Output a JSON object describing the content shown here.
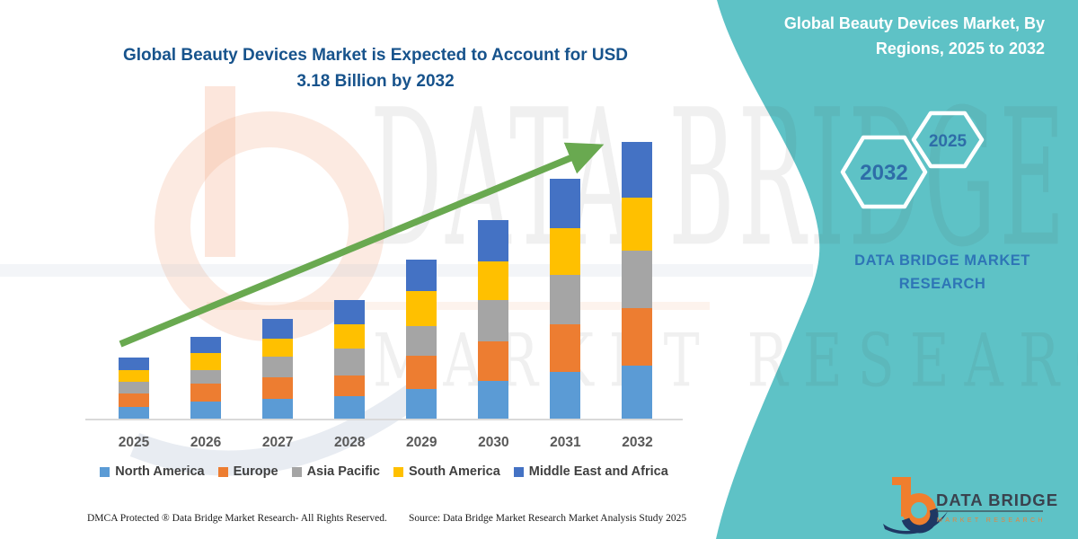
{
  "chart": {
    "title_line1": "Global Beauty Devices Market is Expected to Account for USD",
    "title_line2": "3.18 Billion by 2032"
  },
  "chart_data": {
    "type": "bar",
    "subtype": "stacked-column",
    "title": "Global Beauty Devices Market is Expected to Account for USD 3.18 Billion by 2032",
    "unit": "USD billion (estimated from bar heights; 2032 total anchored at 3.18)",
    "categories": [
      "2025",
      "2026",
      "2027",
      "2028",
      "2029",
      "2030",
      "2031",
      "2032"
    ],
    "series": [
      {
        "name": "North America",
        "color": "#5B9BD5",
        "values": [
          0.13,
          0.19,
          0.23,
          0.26,
          0.34,
          0.43,
          0.53,
          0.61
        ]
      },
      {
        "name": "Europe",
        "color": "#ED7D31",
        "values": [
          0.15,
          0.2,
          0.25,
          0.24,
          0.38,
          0.45,
          0.54,
          0.66
        ]
      },
      {
        "name": "Asia Pacific",
        "color": "#A5A5A5",
        "values": [
          0.13,
          0.15,
          0.24,
          0.31,
          0.34,
          0.47,
          0.56,
          0.66
        ]
      },
      {
        "name": "South America",
        "color": "#FFC000",
        "values": [
          0.13,
          0.19,
          0.2,
          0.28,
          0.4,
          0.44,
          0.53,
          0.61
        ]
      },
      {
        "name": "Middle East and Africa",
        "color": "#4472C4",
        "values": [
          0.14,
          0.18,
          0.23,
          0.28,
          0.36,
          0.47,
          0.56,
          0.64
        ]
      }
    ],
    "totals": [
      0.68,
      0.91,
      1.15,
      1.37,
      1.82,
      2.26,
      2.72,
      3.18
    ],
    "xlabel": "",
    "ylabel": "",
    "ylim": [
      0,
      3.35
    ],
    "grid": false,
    "y_axis_shown": false,
    "legend_position": "bottom",
    "annotations": [
      "upward green trend arrow across bar tops"
    ]
  },
  "side_panel": {
    "title_line1": "Global Beauty Devices Market, By",
    "title_line2": "Regions, 2025 to 2032",
    "hex_large_label": "2032",
    "hex_small_label": "2025",
    "brand_text": "DATA BRIDGE MARKET RESEARCH",
    "panel_color": "#5EC2C6"
  },
  "watermark": {
    "line1": "DATA BRIDGE",
    "line2": "MARKET RESEARCH"
  },
  "logo": {
    "name": "DATA BRIDGE",
    "tagline": "MARKET RESEARCH"
  },
  "footer": {
    "left": "DMCA Protected ® Data Bridge Market Research-  All Rights Reserved.",
    "right": "Source: Data Bridge Market Research  Market Analysis Study 2025"
  },
  "colors": {
    "teal_panel": "#5EC2C6",
    "title_blue": "#17538C",
    "panel_text_blue": "#2E75B6",
    "hex_number_blue": "#2E6DA8",
    "arrow_green": "#69A950",
    "axis_label_gray": "#595959",
    "legend_text_gray": "#3F3F3F",
    "logo_orange": "#F07E2D",
    "logo_navy": "#1F3864",
    "logo_gray": "#3A424E"
  }
}
